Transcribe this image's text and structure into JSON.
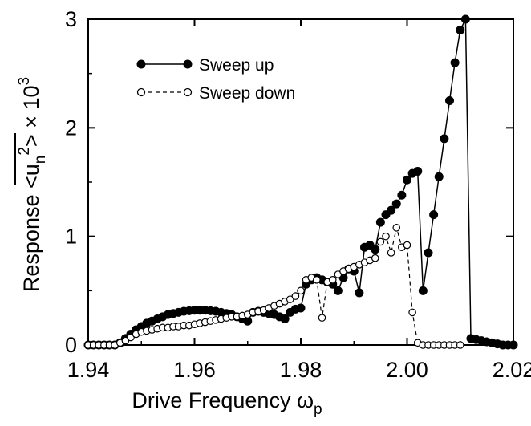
{
  "chart_data": {
    "type": "scatter",
    "xlabel": "Drive Frequency  ω",
    "xlabel_sub": "p",
    "ylabel_main": "Response  <u",
    "ylabel_sub": "n",
    "ylabel_sup": "2",
    "ylabel_tail": ">  × 10",
    "ylabel_exp": "3",
    "xlim": [
      1.94,
      2.02
    ],
    "ylim": [
      0,
      3
    ],
    "x_ticks": [
      "1.94",
      "1.96",
      "1.98",
      "2.00",
      "2.02"
    ],
    "y_ticks": [
      "0",
      "1",
      "2",
      "3"
    ],
    "grid": false,
    "legend": "upper-left",
    "series": [
      {
        "name": "Sweep up",
        "marker": "filled-circle",
        "line": "solid",
        "x": [
          1.94,
          1.941,
          1.942,
          1.943,
          1.944,
          1.945,
          1.946,
          1.947,
          1.948,
          1.949,
          1.95,
          1.951,
          1.952,
          1.953,
          1.954,
          1.955,
          1.956,
          1.957,
          1.958,
          1.959,
          1.96,
          1.961,
          1.962,
          1.963,
          1.964,
          1.965,
          1.966,
          1.967,
          1.968,
          1.969,
          1.97,
          1.971,
          1.972,
          1.973,
          1.974,
          1.975,
          1.976,
          1.977,
          1.978,
          1.979,
          1.98,
          1.981,
          1.982,
          1.983,
          1.984,
          1.985,
          1.986,
          1.987,
          1.988,
          1.989,
          1.99,
          1.991,
          1.992,
          1.993,
          1.994,
          1.995,
          1.996,
          1.997,
          1.998,
          1.999,
          2.0,
          2.001,
          2.002,
          2.003,
          2.004,
          2.005,
          2.006,
          2.007,
          2.008,
          2.009,
          2.01,
          2.011,
          2.012,
          2.013,
          2.014,
          2.015,
          2.016,
          2.017,
          2.018,
          2.019,
          2.02
        ],
        "y": [
          0,
          0,
          0,
          0,
          0,
          0,
          0.02,
          0.06,
          0.1,
          0.14,
          0.17,
          0.2,
          0.22,
          0.24,
          0.26,
          0.28,
          0.29,
          0.3,
          0.31,
          0.315,
          0.32,
          0.32,
          0.32,
          0.315,
          0.31,
          0.3,
          0.29,
          0.28,
          0.26,
          0.24,
          0.22,
          0.3,
          0.31,
          0.3,
          0.29,
          0.28,
          0.26,
          0.24,
          0.3,
          0.33,
          0.34,
          0.56,
          0.6,
          0.62,
          0.6,
          0.58,
          0.56,
          0.5,
          0.62,
          0.7,
          0.68,
          0.48,
          0.9,
          0.92,
          0.88,
          1.13,
          1.2,
          1.24,
          1.3,
          1.38,
          1.52,
          1.58,
          1.6,
          0.5,
          0.85,
          1.2,
          1.55,
          1.9,
          2.25,
          2.6,
          2.9,
          3.0,
          0.06,
          0.05,
          0.04,
          0.03,
          0.02,
          0.01,
          0,
          0,
          0
        ]
      },
      {
        "name": "Sweep down",
        "marker": "open-circle",
        "line": "dashed",
        "x": [
          1.94,
          1.941,
          1.942,
          1.943,
          1.944,
          1.945,
          1.946,
          1.947,
          1.948,
          1.949,
          1.95,
          1.951,
          1.952,
          1.953,
          1.954,
          1.955,
          1.956,
          1.957,
          1.958,
          1.959,
          1.96,
          1.961,
          1.962,
          1.963,
          1.964,
          1.965,
          1.966,
          1.967,
          1.968,
          1.969,
          1.97,
          1.971,
          1.972,
          1.973,
          1.974,
          1.975,
          1.976,
          1.977,
          1.978,
          1.979,
          1.98,
          1.981,
          1.982,
          1.983,
          1.984,
          1.985,
          1.986,
          1.987,
          1.988,
          1.989,
          1.99,
          1.991,
          1.992,
          1.993,
          1.994,
          1.995,
          1.996,
          1.997,
          1.998,
          1.999,
          2.0,
          2.001,
          2.002,
          2.003,
          2.004,
          2.005,
          2.006,
          2.007,
          2.008,
          2.009,
          2.01
        ],
        "y": [
          0,
          0,
          0,
          0,
          0,
          0,
          0.02,
          0.04,
          0.07,
          0.1,
          0.12,
          0.13,
          0.14,
          0.15,
          0.16,
          0.16,
          0.17,
          0.17,
          0.18,
          0.18,
          0.19,
          0.2,
          0.21,
          0.22,
          0.23,
          0.24,
          0.25,
          0.26,
          0.26,
          0.27,
          0.28,
          0.3,
          0.31,
          0.32,
          0.34,
          0.36,
          0.38,
          0.4,
          0.42,
          0.45,
          0.5,
          0.6,
          0.62,
          0.6,
          0.25,
          0.58,
          0.6,
          0.65,
          0.68,
          0.7,
          0.72,
          0.74,
          0.76,
          0.78,
          0.8,
          0.95,
          1.0,
          0.85,
          1.08,
          0.9,
          0.92,
          0.3,
          0.02,
          0,
          0,
          0,
          0,
          0,
          0,
          0,
          0
        ]
      }
    ]
  }
}
